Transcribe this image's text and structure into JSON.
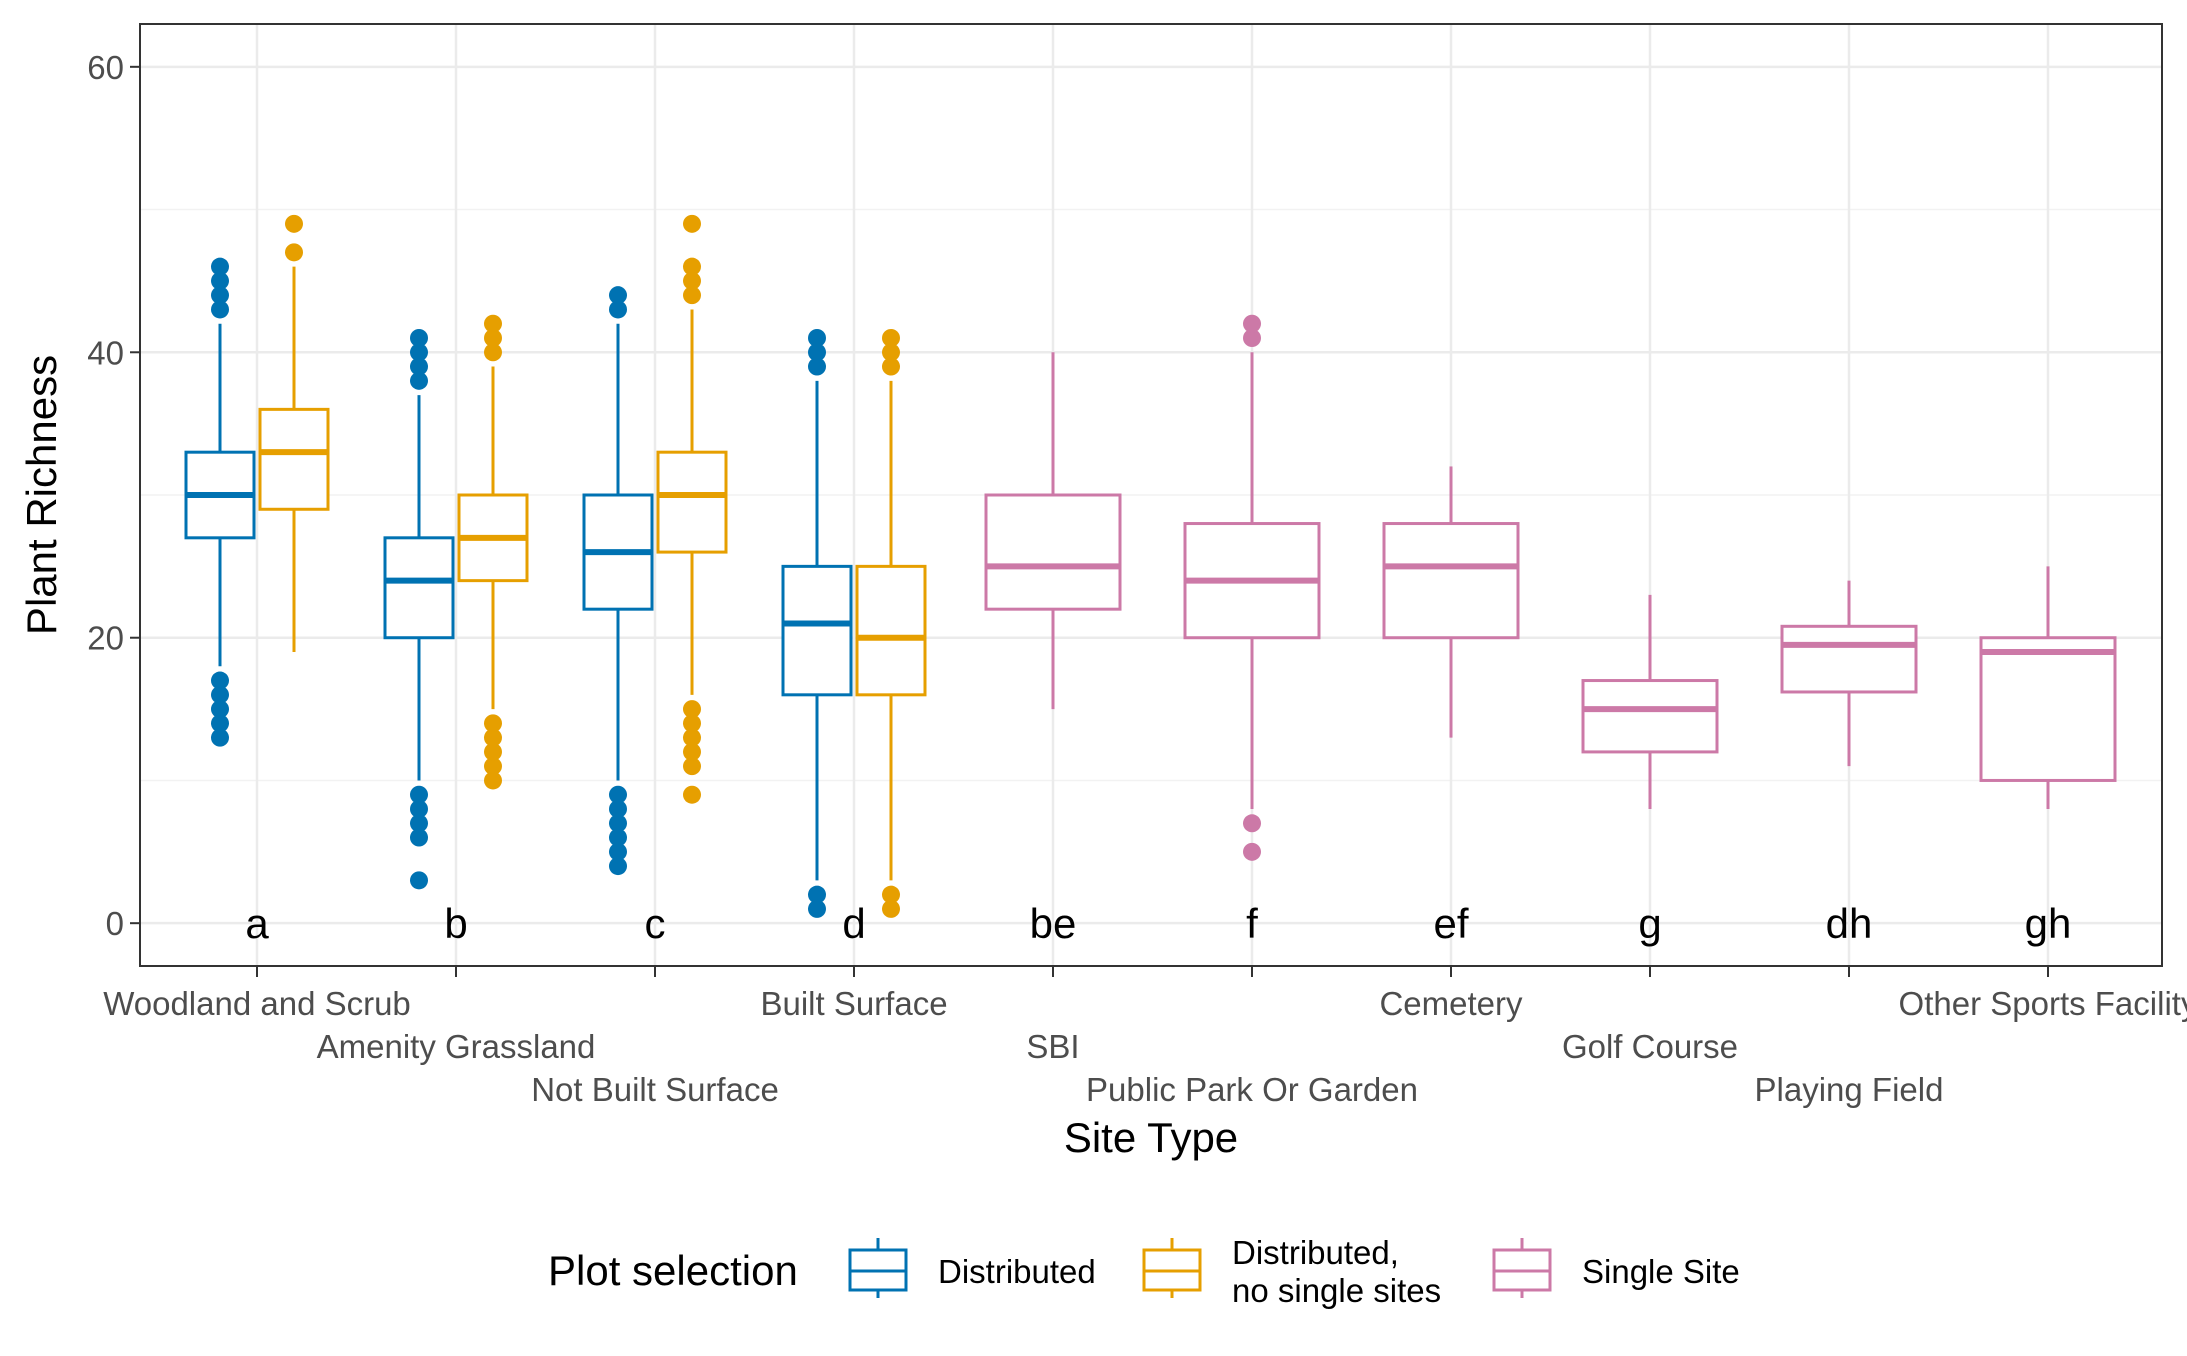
{
  "chart_data": {
    "type": "boxplot",
    "title": "",
    "xlabel": "Site Type",
    "ylabel": "Plant Richness",
    "ylim": [
      -3,
      63
    ],
    "yticks": [
      0,
      20,
      40,
      60
    ],
    "grid": true,
    "legend": {
      "title": "Plot selection",
      "position": "bottom",
      "entries": [
        {
          "key": "dist",
          "label_lines": [
            "Distributed"
          ],
          "color": "#0072B2"
        },
        {
          "key": "dns",
          "label_lines": [
            "Distributed,",
            "no single sites"
          ],
          "color": "#E69F00"
        },
        {
          "key": "single",
          "label_lines": [
            "Single Site"
          ],
          "color": "#CC79A7"
        }
      ]
    },
    "categories": [
      "Woodland and Scrub",
      "Amenity Grassland",
      "Not Built Surface",
      "Built Surface",
      "SBI",
      "Public Park Or Garden",
      "Cemetery",
      "Golf Course",
      "Playing Field",
      "Other Sports Facility"
    ],
    "group_letters": [
      "a",
      "b",
      "c",
      "d",
      "be",
      "f",
      "ef",
      "g",
      "dh",
      "gh"
    ],
    "boxes": [
      {
        "category": 0,
        "series": "dist",
        "min": 18,
        "q1": 27,
        "median": 30,
        "q3": 33,
        "max": 42,
        "outliers": [
          13,
          14,
          15,
          16,
          17,
          43,
          44,
          45,
          46
        ]
      },
      {
        "category": 0,
        "series": "dns",
        "min": 19,
        "q1": 29,
        "median": 33,
        "q3": 36,
        "max": 46,
        "outliers": [
          47,
          49
        ]
      },
      {
        "category": 1,
        "series": "dist",
        "min": 10,
        "q1": 20,
        "median": 24,
        "q3": 27,
        "max": 37,
        "outliers": [
          3,
          6,
          7,
          8,
          9,
          38,
          39,
          40,
          41
        ]
      },
      {
        "category": 1,
        "series": "dns",
        "min": 15,
        "q1": 24,
        "median": 27,
        "q3": 30,
        "max": 39,
        "outliers": [
          10,
          11,
          12,
          13,
          14,
          40,
          41,
          42
        ]
      },
      {
        "category": 2,
        "series": "dist",
        "min": 10,
        "q1": 22,
        "median": 26,
        "q3": 30,
        "max": 42,
        "outliers": [
          4,
          5,
          6,
          7,
          8,
          9,
          43,
          44
        ]
      },
      {
        "category": 2,
        "series": "dns",
        "min": 16,
        "q1": 26,
        "median": 30,
        "q3": 33,
        "max": 43,
        "outliers": [
          9,
          11,
          12,
          13,
          14,
          15,
          44,
          45,
          46,
          49
        ]
      },
      {
        "category": 3,
        "series": "dist",
        "min": 3,
        "q1": 16,
        "median": 21,
        "q3": 25,
        "max": 38,
        "outliers": [
          1,
          2,
          39,
          40,
          41
        ]
      },
      {
        "category": 3,
        "series": "dns",
        "min": 3,
        "q1": 16,
        "median": 20,
        "q3": 25,
        "max": 38,
        "outliers": [
          1,
          2,
          39,
          40,
          41
        ]
      },
      {
        "category": 4,
        "series": "single",
        "min": 15,
        "q1": 22,
        "median": 25,
        "q3": 30,
        "max": 40,
        "outliers": []
      },
      {
        "category": 5,
        "series": "single",
        "min": 8,
        "q1": 20,
        "median": 24,
        "q3": 28,
        "max": 40,
        "outliers": [
          5,
          7,
          41,
          42
        ]
      },
      {
        "category": 6,
        "series": "single",
        "min": 13,
        "q1": 20,
        "median": 25,
        "q3": 28,
        "max": 32,
        "outliers": []
      },
      {
        "category": 7,
        "series": "single",
        "min": 8,
        "q1": 12,
        "median": 15,
        "q3": 17,
        "max": 23,
        "outliers": []
      },
      {
        "category": 8,
        "series": "single",
        "min": 11,
        "q1": 16.2,
        "median": 19.5,
        "q3": 20.8,
        "max": 24,
        "outliers": []
      },
      {
        "category": 9,
        "series": "single",
        "min": 8,
        "q1": 10,
        "median": 19,
        "q3": 20,
        "max": 25,
        "outliers": []
      }
    ]
  }
}
